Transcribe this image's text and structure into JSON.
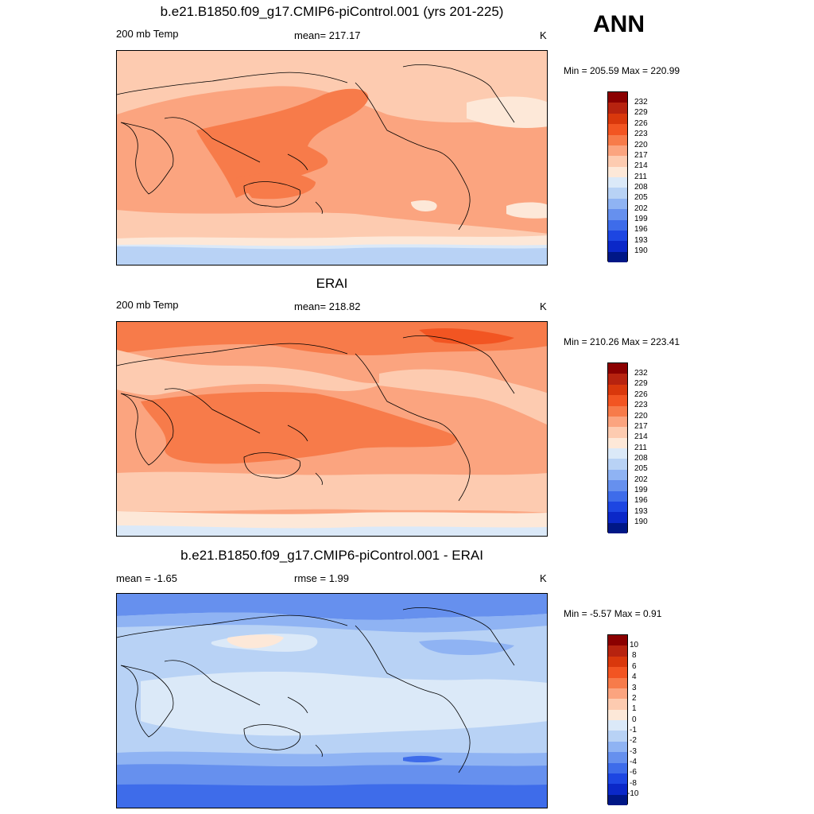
{
  "season": "ANN",
  "panels": [
    {
      "title": "b.e21.B1850.f09_g17.CMIP6-piControl.001 (yrs 201-225)",
      "left_label": "200 mb Temp",
      "center_label": "mean= 217.17",
      "units": "K",
      "minmax": "Min = 205.59 Max = 220.99",
      "levels": [
        "232",
        "229",
        "226",
        "223",
        "220",
        "217",
        "214",
        "211",
        "208",
        "205",
        "202",
        "199",
        "196",
        "193",
        "190"
      ],
      "colors": [
        "#8b0000",
        "#b7230f",
        "#d9380c",
        "#f25522",
        "#f77b4a",
        "#fba47f",
        "#fdcbb0",
        "#fde8d8",
        "#dbe9f8",
        "#b8d2f5",
        "#8fb3f3",
        "#6690ee",
        "#3e6cea",
        "#1d46e2",
        "#0b28c8",
        "#001786"
      ]
    },
    {
      "title": "ERAI",
      "left_label": "200 mb Temp",
      "center_label": "mean= 218.82",
      "units": "K",
      "minmax": "Min = 210.26 Max = 223.41",
      "levels": [
        "232",
        "229",
        "226",
        "223",
        "220",
        "217",
        "214",
        "211",
        "208",
        "205",
        "202",
        "199",
        "196",
        "193",
        "190"
      ],
      "colors": [
        "#8b0000",
        "#b7230f",
        "#d9380c",
        "#f25522",
        "#f77b4a",
        "#fba47f",
        "#fdcbb0",
        "#fde8d8",
        "#dbe9f8",
        "#b8d2f5",
        "#8fb3f3",
        "#6690ee",
        "#3e6cea",
        "#1d46e2",
        "#0b28c8",
        "#001786"
      ]
    },
    {
      "title": "b.e21.B1850.f09_g17.CMIP6-piControl.001 - ERAI",
      "left_label": "mean =  -1.65",
      "center_label": "rmse =   1.99",
      "units": "K",
      "minmax": "Min =  -5.57 Max =   0.91",
      "levels": [
        "10",
        "8",
        "6",
        "4",
        "3",
        "2",
        "1",
        "0",
        "-1",
        "-2",
        "-3",
        "-4",
        "-6",
        "-8",
        "-10"
      ],
      "colors": [
        "#8b0000",
        "#b7230f",
        "#d9380c",
        "#f25522",
        "#f77b4a",
        "#fba47f",
        "#fdcbb0",
        "#fde8d8",
        "#dbe9f8",
        "#b8d2f5",
        "#8fb3f3",
        "#6690ee",
        "#3e6cea",
        "#1d46e2",
        "#0b28c8",
        "#001786"
      ]
    }
  ]
}
